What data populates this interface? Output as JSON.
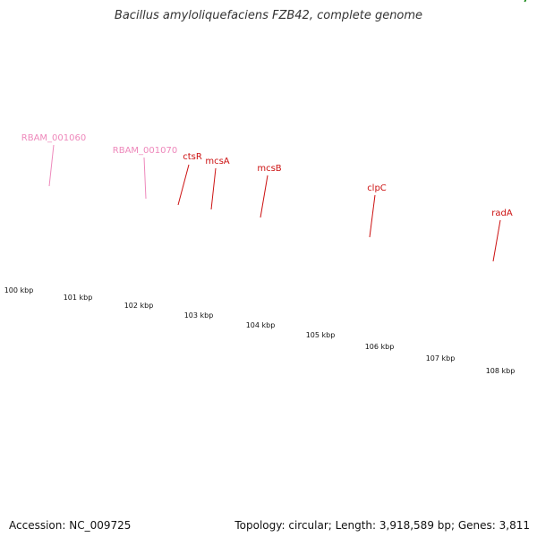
{
  "title": "Bacillus amyloliquefaciens FZB42, complete genome",
  "footer": {
    "accession": "Accession: NC_009725",
    "summary": "Topology: circular; Length: 3,918,589 bp; Genes: 3,811"
  },
  "colors": {
    "backbone": "#808080",
    "tick": "#1a8a1a",
    "cds_red": "#ee1111",
    "label_red": "#cc1111",
    "label_pink": "#ee88bb",
    "pink_gene": "#ffa6d0",
    "orange": "#ff8c00",
    "dark_grey": "#6a6a6a",
    "blue": "#4f86b5",
    "olive": "#bcb87a",
    "light_grey": "#bbbbbb"
  },
  "scale_labels": [
    "100 kbp",
    "101 kbp",
    "102 kbp",
    "103 kbp",
    "104 kbp",
    "105 kbp",
    "106 kbp",
    "107 kbp",
    "108 kbp"
  ],
  "gene_labels": [
    {
      "text": "RBAM_001060",
      "color": "pink"
    },
    {
      "text": "RBAM_001070",
      "color": "pink"
    },
    {
      "text": "ctsR",
      "color": "red"
    },
    {
      "text": "mcsA",
      "color": "red"
    },
    {
      "text": "mcsB",
      "color": "red"
    },
    {
      "text": "clpC",
      "color": "red"
    },
    {
      "text": "radA",
      "color": "red"
    }
  ]
}
